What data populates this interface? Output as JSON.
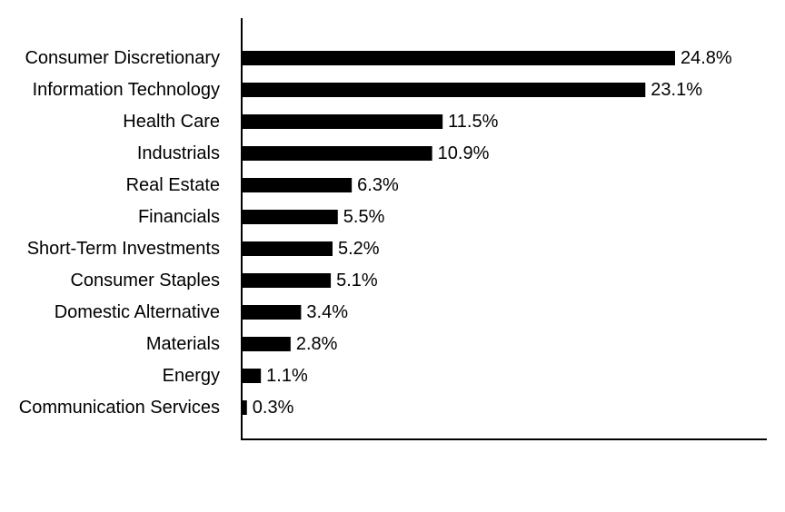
{
  "chart_data": {
    "type": "bar",
    "orientation": "horizontal",
    "title": "",
    "xlabel": "",
    "ylabel": "",
    "categories": [
      "Consumer Discretionary",
      "Information Technology",
      "Health Care",
      "Industrials",
      "Real Estate",
      "Financials",
      "Short-Term Investments",
      "Consumer Staples",
      "Domestic Alternative",
      "Materials",
      "Energy",
      "Communication Services"
    ],
    "values": [
      24.8,
      23.1,
      11.5,
      10.9,
      6.3,
      5.5,
      5.2,
      5.1,
      3.4,
      2.8,
      1.1,
      0.3
    ],
    "value_labels": [
      "24.8%",
      "23.1%",
      "11.5%",
      "10.9%",
      "6.3%",
      "5.5%",
      "5.2%",
      "5.1%",
      "3.4%",
      "2.8%",
      "1.1%",
      "0.3%"
    ],
    "xlim": [
      0,
      30
    ],
    "grid": false,
    "legend": "none",
    "bar_color": "#000000"
  }
}
